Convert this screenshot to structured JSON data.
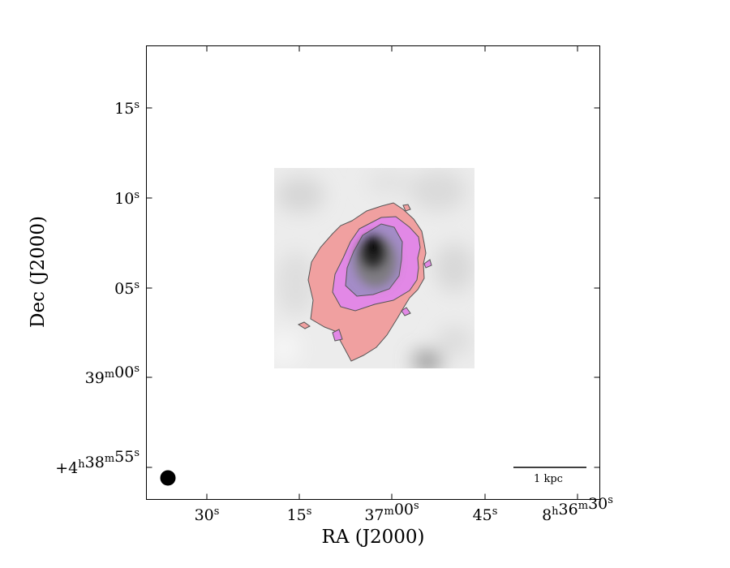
{
  "chart_data": {
    "type": "image",
    "xlabel": "RA (J2000)",
    "ylabel": "Dec (J2000)",
    "x_ticks": [
      {
        "value": "8:37:30",
        "main": "30",
        "sup": "s"
      },
      {
        "value": "8:37:15",
        "main": "15",
        "sup": "s"
      },
      {
        "value": "8:37:00",
        "main": "37",
        "sup": "m",
        "main2": "00",
        "sup2": "s"
      },
      {
        "value": "8:36:45",
        "main": "45",
        "sup": "s"
      },
      {
        "value": "8:36:30",
        "main": "8",
        "sup": "h",
        "main2": "36",
        "sup2": "m",
        "main3": "30",
        "sup3": "s"
      }
    ],
    "y_ticks": [
      {
        "value": "+4:39:15",
        "main": "15",
        "sup": "s"
      },
      {
        "value": "+4:39:10",
        "main": "10",
        "sup": "s"
      },
      {
        "value": "+4:39:05",
        "main": "05",
        "sup": "s"
      },
      {
        "value": "+4:39:00",
        "main": "39",
        "sup": "m",
        "main2": "00",
        "sup2": "s"
      },
      {
        "value": "+4:38:55",
        "main": "+4",
        "sup": "h",
        "main2": "38",
        "sup2": "m",
        "main3": "55",
        "sup3": "s"
      }
    ],
    "scalebar": {
      "label": "1 kpc"
    },
    "beam": {
      "shape": "circle",
      "position": "bottom-left"
    },
    "image": {
      "colormap": "grayscale",
      "peak": "center"
    },
    "contours": [
      {
        "level": 1,
        "fill": "#f0a0a0"
      },
      {
        "level": 2,
        "fill": "#e288e6"
      },
      {
        "level": 3,
        "fill": "#a48cc8"
      }
    ],
    "grid": false
  }
}
